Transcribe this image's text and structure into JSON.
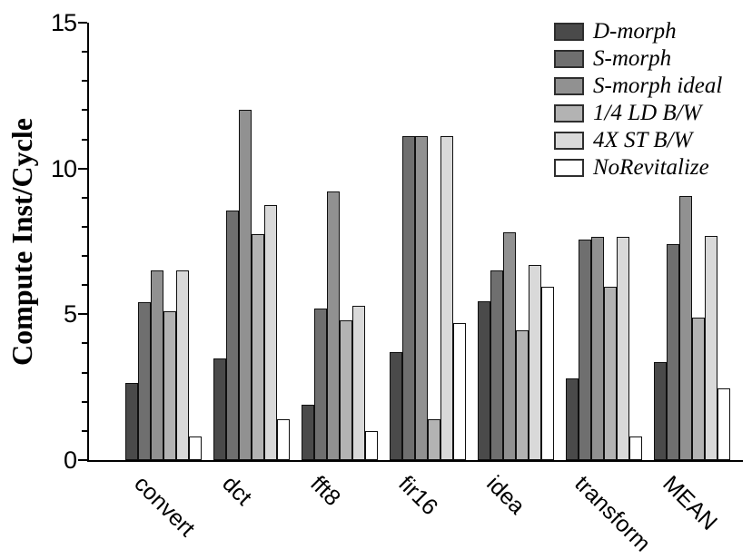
{
  "chart_data": {
    "type": "bar",
    "title": "",
    "xlabel": "",
    "ylabel": "Compute Inst/Cycle",
    "ylim": [
      0,
      15
    ],
    "yticks_major": [
      0,
      5,
      10,
      15
    ],
    "minor_tick_interval": 1,
    "grid": false,
    "legend_position": "top-right",
    "bar_outline_color": "#101010",
    "categories": [
      "convert",
      "dct",
      "fft8",
      "fir16",
      "idea",
      "transform",
      "MEAN"
    ],
    "series": [
      {
        "name": "D-morph",
        "color": "#4a4a4a",
        "values": [
          2.65,
          3.5,
          1.9,
          3.7,
          5.45,
          2.8,
          3.35
        ]
      },
      {
        "name": "S-morph",
        "color": "#6f6f6f",
        "values": [
          5.4,
          8.55,
          5.2,
          11.1,
          6.5,
          7.55,
          7.4
        ]
      },
      {
        "name": "S-morph ideal",
        "color": "#919191",
        "values": [
          6.5,
          12.0,
          9.2,
          11.1,
          7.8,
          7.65,
          9.05
        ]
      },
      {
        "name": "1/4 LD B/W",
        "color": "#b3b3b3",
        "values": [
          5.1,
          7.75,
          4.8,
          1.4,
          4.45,
          5.95,
          4.9
        ]
      },
      {
        "name": "4X ST B/W",
        "color": "#d9d9d9",
        "values": [
          6.5,
          8.75,
          5.3,
          11.1,
          6.7,
          7.65,
          7.7
        ]
      },
      {
        "name": "NoRevitalize",
        "color": "#ffffff",
        "values": [
          0.8,
          1.4,
          1.0,
          4.7,
          5.95,
          0.8,
          2.45
        ]
      }
    ]
  }
}
